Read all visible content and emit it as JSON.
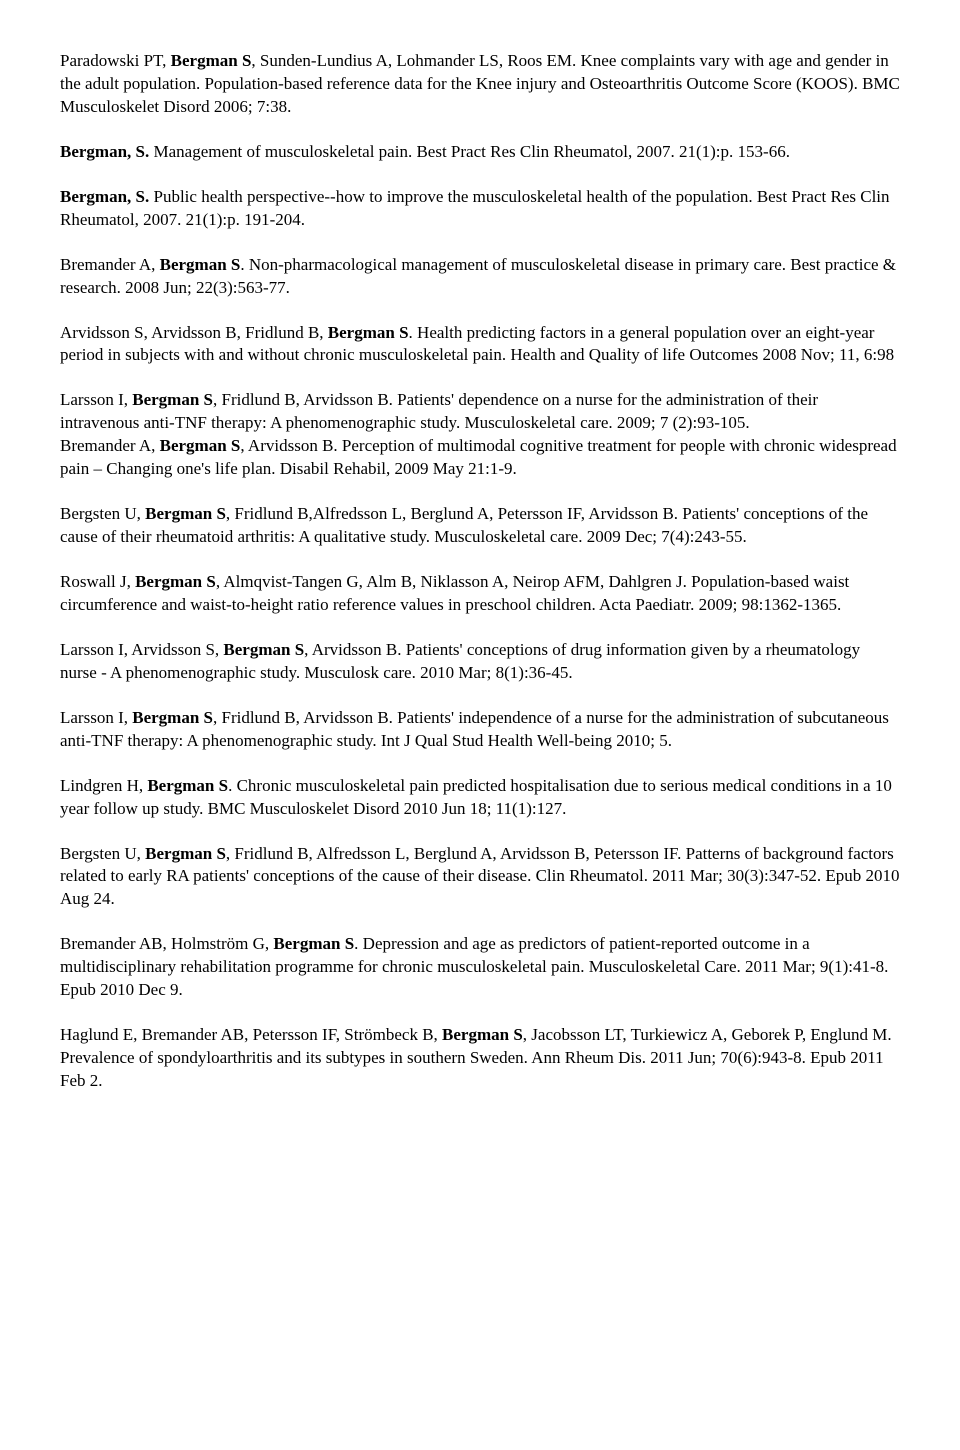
{
  "refs": [
    {
      "pre": "Paradowski PT, ",
      "bold": "Bergman S",
      "post": ", Sunden-Lundius A, Lohmander LS, Roos EM. Knee complaints vary with age and gender in the adult population. Population-based reference data for the Knee injury and Osteoarthritis Outcome Score (KOOS). BMC Musculoskelet Disord 2006; 7:38."
    },
    {
      "pre": "",
      "bold": "Bergman, S.",
      "post": " Management of musculoskeletal pain. Best Pract Res Clin Rheumatol, 2007. 21(1):p. 153-66."
    },
    {
      "pre": "",
      "bold": "Bergman, S.",
      "post": " Public health perspective--how to improve the musculoskeletal health of the population. Best Pract Res Clin Rheumatol, 2007. 21(1):p. 191-204."
    },
    {
      "pre": "Bremander A, ",
      "bold": "Bergman S",
      "post": ". Non-pharmacological management of musculoskeletal disease in primary care. Best practice & research. 2008 Jun; 22(3):563-77."
    },
    {
      "pre": "Arvidsson S, Arvidsson B, Fridlund B, ",
      "bold": "Bergman S",
      "post": ". Health predicting factors in a general population over an eight-year period in subjects with and without chronic musculoskeletal pain. Health and Quality of life Outcomes 2008 Nov; 11, 6:98"
    },
    {
      "pre": "Larsson I, ",
      "bold": "Bergman S",
      "post": ", Fridlund B, Arvidsson B. Patients' dependence on a nurse for the administration of their intravenous anti-TNF therapy: A phenomenographic study. Musculoskeletal care. 2009; 7 (2):93-105.",
      "tight": true
    },
    {
      "pre": "Bremander A, ",
      "bold": "Bergman S",
      "post": ", Arvidsson B. Perception of multimodal cognitive treatment for people with chronic widespread pain – Changing one's life plan. Disabil Rehabil, 2009 May 21:1-9."
    },
    {
      "pre": "Bergsten U, ",
      "bold": "Bergman S",
      "post": ", Fridlund B,Alfredsson L, Berglund A, Petersson IF, Arvidsson B. Patients' conceptions of the cause of their rheumatoid arthritis: A qualitative study. Musculoskeletal care. 2009 Dec; 7(4):243-55."
    },
    {
      "pre": "Roswall J, ",
      "bold": "Bergman S",
      "post": ", Almqvist-Tangen G, Alm B, Niklasson A, Neirop AFM, Dahlgren J. Population-based waist circumference and waist-to-height ratio reference values in preschool children. Acta Paediatr. 2009; 98:1362-1365."
    },
    {
      "pre": "Larsson I, Arvidsson S, ",
      "bold": "Bergman S",
      "post": ", Arvidsson B. Patients' conceptions of drug information given by a rheumatology nurse - A phenomenographic study. Musculosk care. 2010 Mar; 8(1):36-45."
    },
    {
      "pre": "Larsson I, ",
      "bold": "Bergman S",
      "post": ", Fridlund B, Arvidsson B. Patients' independence of a nurse for the administration of subcutaneous anti-TNF therapy: A phenomenographic study. Int J Qual Stud Health Well-being 2010; 5."
    },
    {
      "pre": "Lindgren H, ",
      "bold": "Bergman S",
      "post": ". Chronic musculoskeletal pain predicted hospitalisation due to serious medical conditions in a 10 year follow up study. BMC Musculoskelet Disord 2010 Jun 18; 11(1):127."
    },
    {
      "pre": "Bergsten U, ",
      "bold": "Bergman S",
      "post": ", Fridlund B, Alfredsson L, Berglund A, Arvidsson B, Petersson IF. Patterns of background factors related to early RA patients' conceptions of the cause of their disease. Clin Rheumatol. 2011 Mar; 30(3):347-52. Epub 2010 Aug 24."
    },
    {
      "pre": "Bremander AB, Holmström G, ",
      "bold": "Bergman S",
      "post": ". Depression and age as predictors of patient-reported outcome in a multidisciplinary rehabilitation programme for chronic musculoskeletal pain. Musculoskeletal Care. 2011 Mar; 9(1):41-8. Epub 2010 Dec 9."
    },
    {
      "pre": "Haglund E, Bremander AB, Petersson IF, Strömbeck B, ",
      "bold": "Bergman S",
      "post": ", Jacobsson LT, Turkiewicz A, Geborek P, Englund M. Prevalence of spondyloarthritis and its subtypes in southern Sweden. Ann Rheum Dis. 2011 Jun; 70(6):943-8. Epub 2011 Feb 2."
    }
  ]
}
